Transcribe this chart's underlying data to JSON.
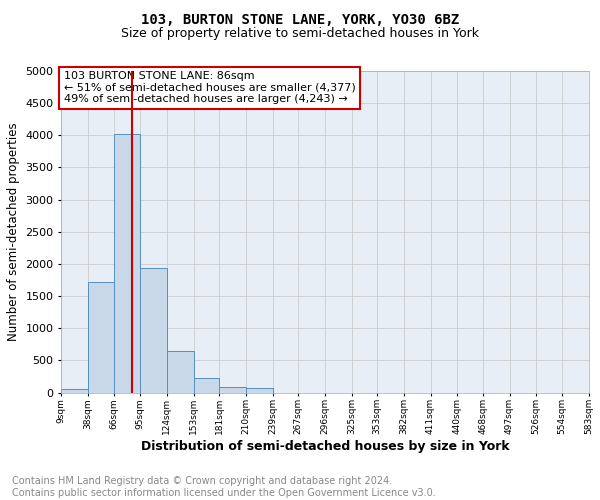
{
  "title": "103, BURTON STONE LANE, YORK, YO30 6BZ",
  "subtitle": "Size of property relative to semi-detached houses in York",
  "xlabel": "Distribution of semi-detached houses by size in York",
  "ylabel": "Number of semi-detached properties",
  "footer": "Contains HM Land Registry data © Crown copyright and database right 2024.\nContains public sector information licensed under the Open Government Licence v3.0.",
  "annotation_title": "103 BURTON STONE LANE: 86sqm",
  "annotation_line1": "← 51% of semi-detached houses are smaller (4,377)",
  "annotation_line2": "49% of semi-detached houses are larger (4,243) →",
  "property_size": 86,
  "bin_edges": [
    9,
    38,
    66,
    95,
    124,
    153,
    181,
    210,
    239,
    267,
    296,
    325,
    353,
    382,
    411,
    440,
    468,
    497,
    526,
    554,
    583
  ],
  "bin_heights": [
    55,
    1720,
    4020,
    1940,
    650,
    220,
    90,
    65,
    0,
    0,
    0,
    0,
    0,
    0,
    0,
    0,
    0,
    0,
    0,
    0
  ],
  "bar_color": "#c8d8e8",
  "bar_edge_color": "#5590c0",
  "vline_color": "#cc0000",
  "vline_x": 86,
  "ylim": [
    0,
    5000
  ],
  "yticks": [
    0,
    500,
    1000,
    1500,
    2000,
    2500,
    3000,
    3500,
    4000,
    4500,
    5000
  ],
  "grid_color": "#cccccc",
  "bg_color": "#e8eef5",
  "annotation_box_color": "#ffffff",
  "annotation_box_edge": "#cc0000",
  "title_fontsize": 10,
  "subtitle_fontsize": 9,
  "footer_fontsize": 7,
  "xlabel_fontsize": 9,
  "ylabel_fontsize": 8.5
}
